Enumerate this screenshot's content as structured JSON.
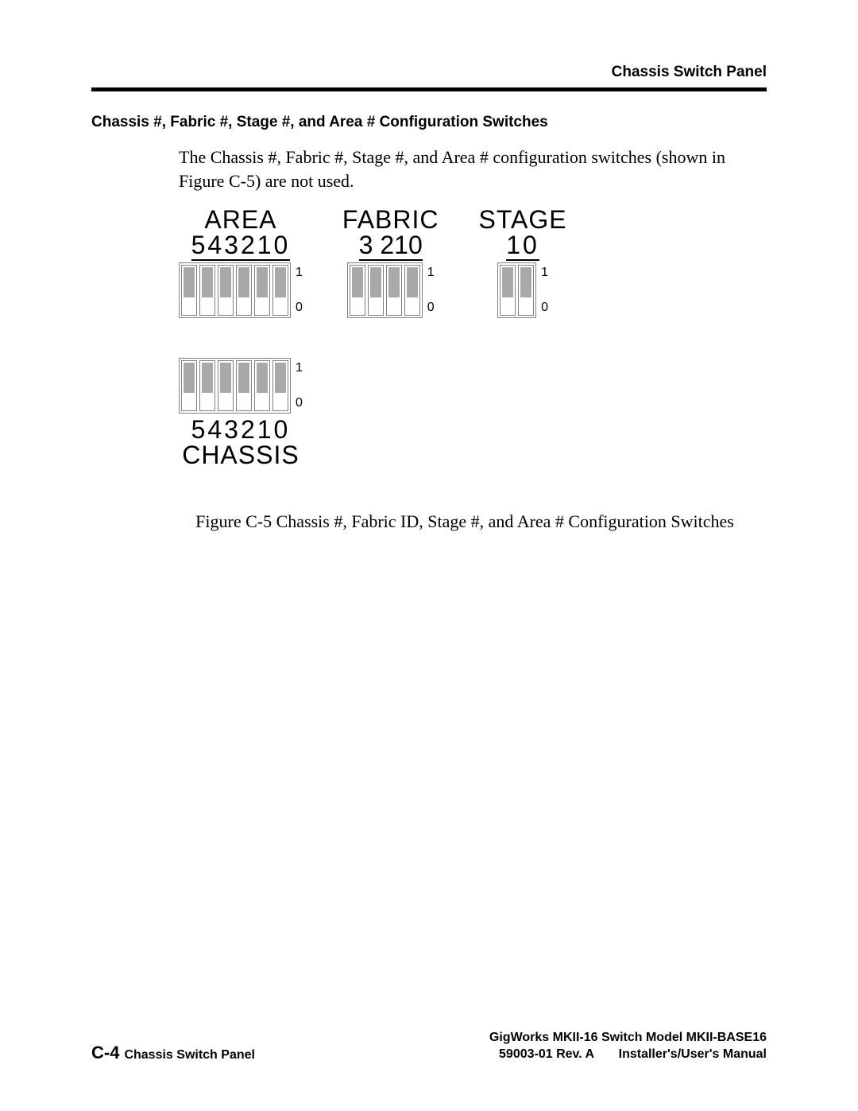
{
  "header": {
    "right_title": "Chassis Switch Panel"
  },
  "section": {
    "heading": "Chassis #, Fabric #, Stage #, and Area # Configuration Switches",
    "body": "The Chassis #, Fabric #, Stage #, and Area # configuration switches (shown in Figure C-5) are not used."
  },
  "figure": {
    "area": {
      "title": "AREA",
      "numbers": "543210",
      "switch_count": 6,
      "label_hi": "1",
      "label_lo": "0"
    },
    "fabric": {
      "title": "FABRIC",
      "numbers": "3 210",
      "switch_count": 4,
      "label_hi": "1",
      "label_lo": "0"
    },
    "stage": {
      "title": "STAGE",
      "numbers": "10",
      "switch_count": 2,
      "label_hi": "1",
      "label_lo": "0"
    },
    "chassis": {
      "title": "CHASSIS",
      "numbers": "543210",
      "switch_count": 6,
      "label_hi": "1",
      "label_lo": "0"
    },
    "caption": "Figure C-5  Chassis #, Fabric ID, Stage #, and Area # Configuration Switches",
    "colors": {
      "switch_fill": "#a9a9a9",
      "switch_border": "#808080",
      "background": "#ffffff",
      "rule": "#000000"
    }
  },
  "footer": {
    "page_num": "C-4",
    "left_label": "Chassis Switch Panel",
    "right_line1": "GigWorks MKII-16 Switch Model MKII-BASE16",
    "right_line2_a": "59003-01 Rev. A",
    "right_line2_b": "Installer's/User's Manual"
  }
}
